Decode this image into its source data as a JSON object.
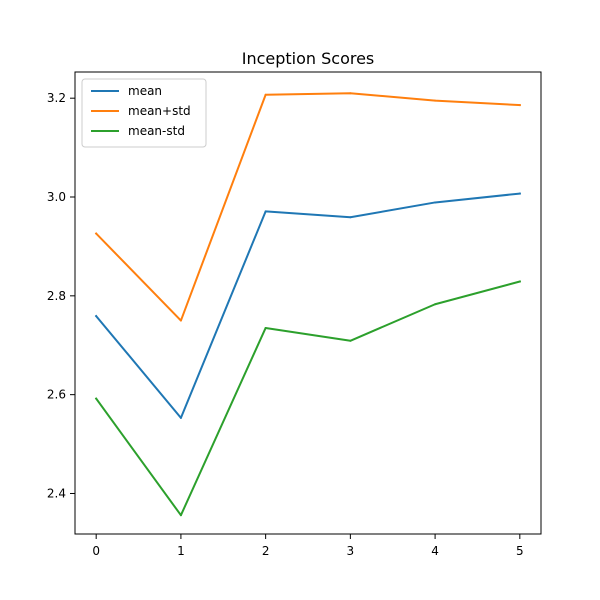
{
  "chart_data": {
    "type": "line",
    "title": "Inception Scores",
    "xlabel": "",
    "ylabel": "",
    "x": [
      0,
      1,
      2,
      3,
      4,
      5
    ],
    "xticks": [
      "0",
      "1",
      "2",
      "3",
      "4",
      "5"
    ],
    "yticks": [
      "2.4",
      "2.6",
      "2.8",
      "3.0",
      "3.2"
    ],
    "xlim": [
      -0.25,
      5.25
    ],
    "ylim": [
      2.318,
      3.253
    ],
    "grid": false,
    "legend_position": "upper-left",
    "series": [
      {
        "name": "mean",
        "color": "#1f77b4",
        "values": [
          2.759,
          2.553,
          2.971,
          2.959,
          2.989,
          3.007
        ]
      },
      {
        "name": "mean+std",
        "color": "#ff7f0e",
        "values": [
          2.926,
          2.75,
          3.207,
          3.21,
          3.195,
          3.186
        ]
      },
      {
        "name": "mean-std",
        "color": "#2ca02c",
        "values": [
          2.592,
          2.356,
          2.735,
          2.709,
          2.783,
          2.829
        ]
      }
    ]
  }
}
